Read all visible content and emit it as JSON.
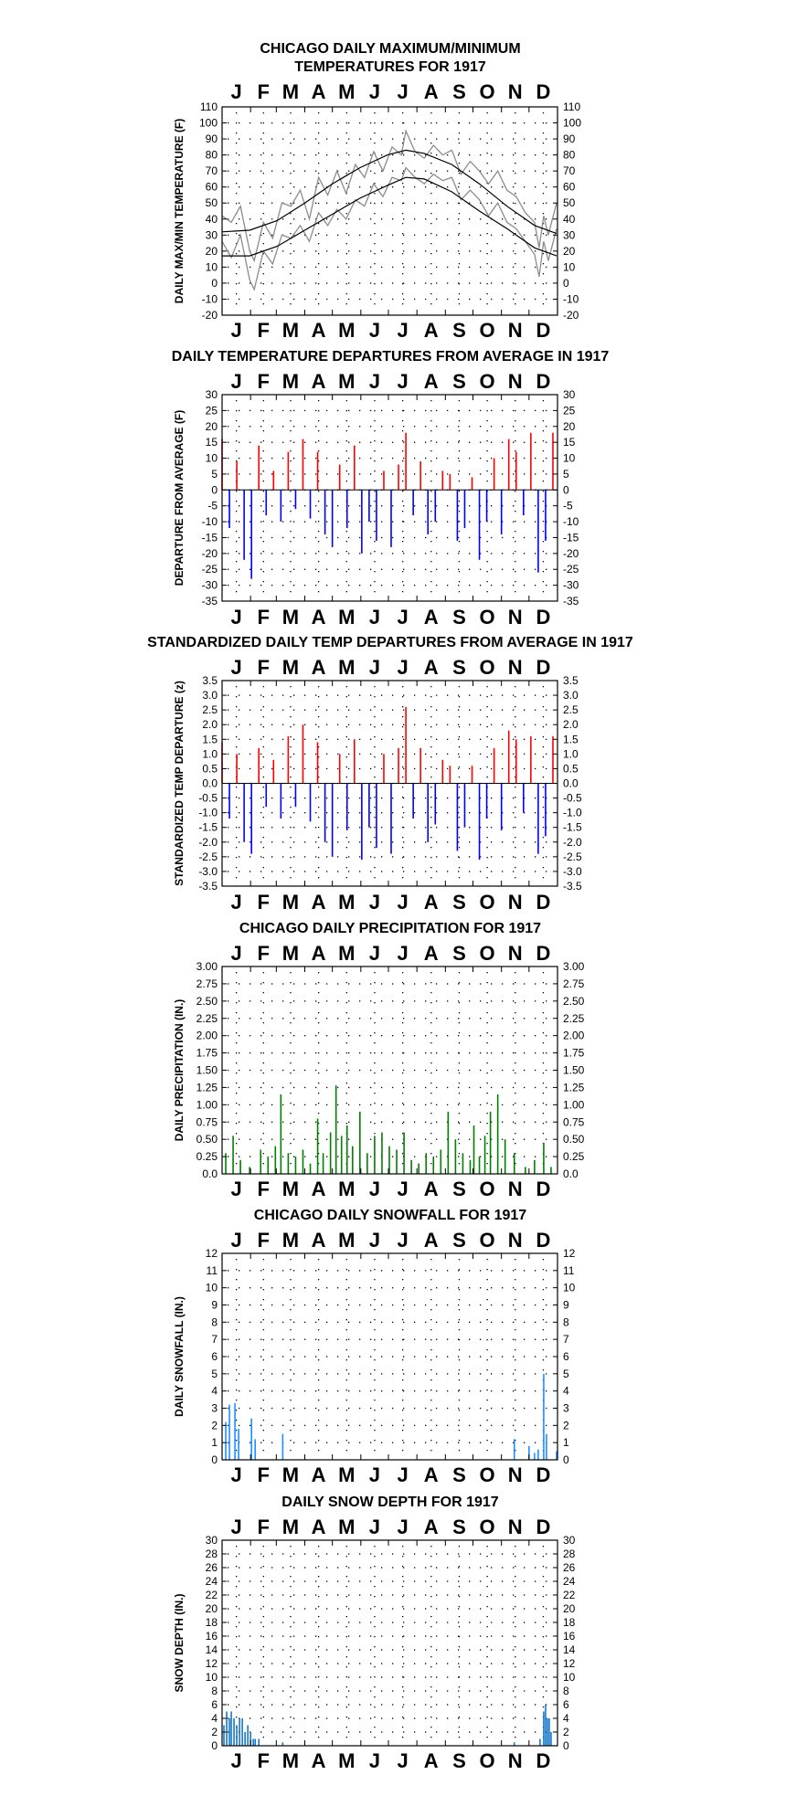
{
  "chart_data": [
    {
      "id": "temps",
      "type": "line",
      "title": [
        "CHICAGO DAILY MAXIMUM/MINIMUM",
        "TEMPERATURES FOR 1917"
      ],
      "ylabel": "DAILY MAX/MIN TEMPERATURE (F)",
      "ylim": [
        -20,
        110
      ],
      "yticks": [
        -20,
        -10,
        0,
        10,
        20,
        30,
        40,
        50,
        60,
        70,
        80,
        90,
        100,
        110
      ],
      "month_labels": [
        "J",
        "F",
        "M",
        "A",
        "M",
        "J",
        "J",
        "A",
        "S",
        "O",
        "N",
        "D"
      ],
      "grid": true,
      "colors": {
        "daily": "#8c8c8c",
        "normal": "#000000"
      },
      "normal_max": {
        "x_day": [
          0,
          30,
          60,
          90,
          120,
          150,
          180,
          200,
          220,
          250,
          280,
          310,
          340,
          364
        ],
        "y": [
          32,
          33,
          39,
          50,
          62,
          72,
          80,
          83,
          81,
          74,
          62,
          48,
          36,
          31
        ]
      },
      "normal_min": {
        "x_day": [
          0,
          30,
          60,
          90,
          120,
          150,
          180,
          200,
          220,
          250,
          280,
          310,
          340,
          364
        ],
        "y": [
          17,
          17,
          23,
          33,
          43,
          53,
          61,
          66,
          65,
          57,
          45,
          34,
          22,
          17
        ]
      },
      "daily_max": {
        "x_day": [
          0,
          10,
          20,
          30,
          35,
          45,
          55,
          65,
          75,
          85,
          95,
          105,
          115,
          125,
          135,
          145,
          155,
          165,
          175,
          185,
          195,
          200,
          210,
          220,
          230,
          240,
          250,
          260,
          270,
          280,
          290,
          300,
          310,
          320,
          330,
          340,
          345,
          350,
          355,
          364
        ],
        "y": [
          42,
          38,
          48,
          20,
          14,
          38,
          28,
          50,
          48,
          58,
          40,
          66,
          55,
          70,
          56,
          74,
          66,
          82,
          70,
          85,
          80,
          95,
          82,
          78,
          86,
          80,
          83,
          68,
          76,
          70,
          62,
          70,
          58,
          54,
          44,
          38,
          22,
          42,
          30,
          50
        ]
      },
      "daily_min": {
        "x_day": [
          0,
          10,
          20,
          30,
          35,
          45,
          55,
          65,
          75,
          85,
          95,
          105,
          115,
          125,
          135,
          145,
          155,
          165,
          175,
          185,
          195,
          200,
          210,
          220,
          230,
          240,
          250,
          260,
          270,
          280,
          290,
          300,
          310,
          320,
          330,
          340,
          345,
          350,
          355,
          364
        ],
        "y": [
          26,
          16,
          30,
          2,
          -4,
          20,
          12,
          30,
          28,
          36,
          26,
          44,
          36,
          46,
          40,
          52,
          48,
          62,
          54,
          66,
          64,
          72,
          66,
          62,
          68,
          64,
          66,
          52,
          58,
          52,
          42,
          50,
          38,
          34,
          26,
          18,
          4,
          26,
          14,
          34
        ]
      }
    },
    {
      "id": "departures",
      "type": "bar",
      "title": [
        "DAILY TEMPERATURE DEPARTURES FROM AVERAGE IN 1917"
      ],
      "ylabel": "DEPARTURE FROM AVERAGE (F)",
      "ylim": [
        -35,
        30
      ],
      "yticks": [
        -35,
        -30,
        -25,
        -20,
        -15,
        -10,
        -5,
        0,
        5,
        10,
        15,
        20,
        25,
        30
      ],
      "month_labels": [
        "J",
        "F",
        "M",
        "A",
        "M",
        "J",
        "J",
        "A",
        "S",
        "O",
        "N",
        "D"
      ],
      "grid": true,
      "colors": {
        "positive": "#ff0000",
        "negative": "#0000ff"
      },
      "x_day": [
        0,
        8,
        16,
        24,
        32,
        40,
        48,
        56,
        64,
        72,
        80,
        88,
        96,
        104,
        112,
        120,
        128,
        136,
        144,
        152,
        160,
        168,
        176,
        184,
        192,
        200,
        208,
        216,
        224,
        232,
        240,
        248,
        256,
        264,
        272,
        280,
        288,
        296,
        304,
        312,
        320,
        328,
        336,
        344,
        352,
        360
      ],
      "values": [
        16,
        -12,
        9,
        -22,
        -28,
        14,
        -8,
        6,
        -10,
        12,
        -6,
        16,
        -9,
        12,
        -14,
        -18,
        8,
        -12,
        14,
        -20,
        -10,
        -16,
        6,
        -18,
        8,
        18,
        -8,
        9,
        -14,
        -10,
        6,
        5,
        -16,
        -12,
        4,
        -22,
        -10,
        10,
        -14,
        16,
        12,
        -8,
        18,
        -26,
        -16,
        18
      ]
    },
    {
      "id": "standardized",
      "type": "bar",
      "title": [
        "STANDARDIZED DAILY TEMP DEPARTURES FROM AVERAGE IN 1917"
      ],
      "ylabel": "STANDARDIZED TEMP DEPARTURE (z)",
      "ylim": [
        -3.5,
        3.5
      ],
      "yticks": [
        -3.5,
        -3.0,
        -2.5,
        -2.0,
        -1.5,
        -1.0,
        -0.5,
        0.0,
        0.5,
        1.0,
        1.5,
        2.0,
        2.5,
        3.0,
        3.5
      ],
      "month_labels": [
        "J",
        "F",
        "M",
        "A",
        "M",
        "J",
        "J",
        "A",
        "S",
        "O",
        "N",
        "D"
      ],
      "grid": true,
      "colors": {
        "positive": "#ff0000",
        "negative": "#0000ff"
      },
      "x_day": [
        0,
        8,
        16,
        24,
        32,
        40,
        48,
        56,
        64,
        72,
        80,
        88,
        96,
        104,
        112,
        120,
        128,
        136,
        144,
        152,
        160,
        168,
        176,
        184,
        192,
        200,
        208,
        216,
        224,
        232,
        240,
        248,
        256,
        264,
        272,
        280,
        288,
        296,
        304,
        312,
        320,
        328,
        336,
        344,
        352,
        360
      ],
      "values": [
        1.4,
        -1.2,
        1.0,
        -2.0,
        -2.4,
        1.2,
        -0.8,
        0.8,
        -1.2,
        1.6,
        -0.8,
        2.0,
        -1.3,
        1.4,
        -2.0,
        -2.5,
        1.0,
        -1.6,
        1.5,
        -2.6,
        -1.5,
        -2.2,
        1.0,
        -2.4,
        1.2,
        2.6,
        -1.2,
        1.2,
        -2.0,
        -1.4,
        0.8,
        0.6,
        -2.3,
        -1.5,
        0.6,
        -2.6,
        -1.2,
        1.2,
        -1.6,
        1.8,
        1.5,
        -1.0,
        1.6,
        -2.4,
        -1.8,
        1.6
      ]
    },
    {
      "id": "precip",
      "type": "bar",
      "title": [
        "CHICAGO DAILY PRECIPITATION FOR 1917"
      ],
      "ylabel": "DAILY PRECIPITATION (IN.)",
      "ylim": [
        0,
        3.0
      ],
      "yticks": [
        0.0,
        0.25,
        0.5,
        0.75,
        1.0,
        1.25,
        1.5,
        1.75,
        2.0,
        2.25,
        2.5,
        2.75,
        3.0
      ],
      "ytick_labels": [
        "0.0",
        "0.25",
        "0.50",
        "0.75",
        "1.00",
        "1.25",
        "1.50",
        "1.75",
        "2.00",
        "2.25",
        "2.50",
        "2.75",
        "3.00"
      ],
      "month_labels": [
        "J",
        "F",
        "M",
        "A",
        "M",
        "J",
        "J",
        "A",
        "S",
        "O",
        "N",
        "D"
      ],
      "grid": true,
      "colors": {
        "bar": "#008000"
      },
      "x_day": [
        4,
        12,
        20,
        30,
        42,
        50,
        58,
        64,
        72,
        80,
        88,
        96,
        104,
        110,
        118,
        124,
        130,
        136,
        142,
        150,
        158,
        166,
        174,
        182,
        190,
        198,
        206,
        214,
        222,
        230,
        238,
        246,
        254,
        262,
        270,
        274,
        280,
        286,
        292,
        300,
        308,
        318,
        330,
        340,
        350,
        358
      ],
      "values": [
        0.3,
        0.55,
        0.2,
        0.1,
        0.35,
        0.25,
        0.4,
        1.15,
        0.3,
        0.25,
        0.35,
        0.15,
        0.8,
        0.3,
        0.6,
        1.28,
        0.55,
        0.7,
        0.4,
        0.9,
        0.3,
        0.55,
        0.6,
        0.4,
        0.35,
        0.6,
        0.2,
        0.15,
        0.3,
        0.25,
        0.35,
        0.9,
        0.5,
        0.3,
        0.2,
        0.7,
        0.25,
        0.55,
        0.9,
        1.15,
        0.5,
        0.3,
        0.1,
        0.2,
        0.45,
        0.1
      ]
    },
    {
      "id": "snowfall",
      "type": "bar",
      "title": [
        "CHICAGO DAILY SNOWFALL FOR 1917"
      ],
      "ylabel": "DAILY SNOWFALL (IN.)",
      "ylim": [
        0,
        12
      ],
      "yticks": [
        0,
        1,
        2,
        3,
        4,
        5,
        6,
        7,
        8,
        9,
        10,
        11,
        12
      ],
      "month_labels": [
        "J",
        "F",
        "M",
        "A",
        "M",
        "J",
        "J",
        "A",
        "S",
        "O",
        "N",
        "D"
      ],
      "grid": true,
      "colors": {
        "bar": "#1e90ff"
      },
      "x_day": [
        4,
        8,
        14,
        18,
        32,
        36,
        66,
        318,
        334,
        340,
        344,
        350,
        353,
        364
      ],
      "values": [
        2.2,
        3.2,
        3.3,
        1.8,
        2.4,
        1.2,
        1.5,
        1.2,
        0.8,
        0.4,
        0.6,
        5.0,
        1.5,
        0.5
      ]
    },
    {
      "id": "snowdepth",
      "type": "bar",
      "title": [
        "DAILY SNOW DEPTH FOR 1917"
      ],
      "ylabel": "SNOW DEPTH (IN.)",
      "ylim": [
        0,
        30
      ],
      "yticks": [
        0,
        2,
        4,
        6,
        8,
        10,
        12,
        14,
        16,
        18,
        20,
        22,
        24,
        26,
        28,
        30
      ],
      "month_labels": [
        "J",
        "F",
        "M",
        "A",
        "M",
        "J",
        "J",
        "A",
        "S",
        "O",
        "N",
        "D"
      ],
      "grid": true,
      "colors": {
        "bar": "#1878c8"
      },
      "x_day": [
        2,
        5,
        8,
        10,
        13,
        16,
        19,
        22,
        25,
        28,
        31,
        34,
        36,
        40,
        66,
        318,
        346,
        350,
        352,
        354,
        356,
        358
      ],
      "values": [
        3,
        5,
        4,
        5,
        4,
        3,
        4,
        4,
        2,
        3,
        2,
        1,
        1,
        1,
        0.5,
        0.5,
        1,
        5,
        6,
        4,
        4,
        2
      ]
    }
  ]
}
